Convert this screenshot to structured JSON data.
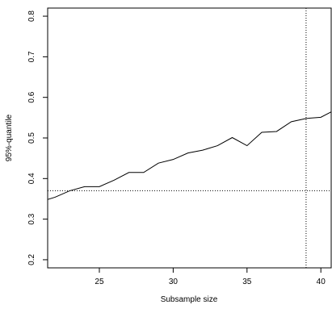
{
  "chart_data": {
    "type": "line",
    "title": "",
    "xlabel": "Subsample size",
    "ylabel": "95%-quantile",
    "xlim": [
      21.5,
      40.7
    ],
    "ylim": [
      0.18,
      0.82
    ],
    "x_ticks": [
      25,
      30,
      35,
      40
    ],
    "y_ticks": [
      0.2,
      0.3,
      0.4,
      0.5,
      0.6,
      0.7,
      0.8
    ],
    "x_tick_labels": [
      "25",
      "30",
      "35",
      "40"
    ],
    "y_tick_labels": [
      "0.2",
      "0.3",
      "0.4",
      "0.5",
      "0.6",
      "0.7",
      "0.8"
    ],
    "grid": false,
    "series": [
      {
        "x": [
          21,
          22,
          23,
          24,
          25,
          26,
          27,
          28,
          29,
          30,
          31,
          32,
          33,
          34,
          35,
          36,
          37,
          38,
          39,
          40,
          41
        ],
        "y": [
          0.343,
          0.354,
          0.37,
          0.38,
          0.38,
          0.396,
          0.415,
          0.415,
          0.438,
          0.447,
          0.463,
          0.47,
          0.481,
          0.501,
          0.481,
          0.514,
          0.516,
          0.54,
          0.548,
          0.551,
          0.57
        ],
        "color": "#000000"
      }
    ],
    "reference_lines": [
      {
        "axis": "y",
        "value": 0.37,
        "style": "dotted"
      },
      {
        "axis": "x",
        "value": 39,
        "style": "dotted"
      }
    ]
  }
}
